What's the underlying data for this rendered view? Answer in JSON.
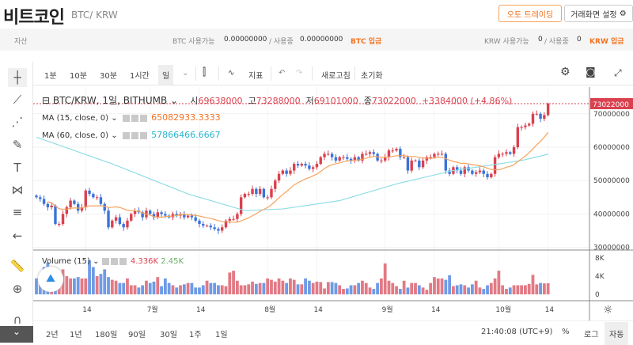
{
  "header": {
    "title": "비트코인",
    "pair": "BTC/ KRW",
    "auto_trading": "오토 트레이딩",
    "screen_settings": "거래화면 설정"
  },
  "assets": {
    "label": "자산",
    "btc_avail_label": "BTC 사용가능",
    "btc_avail": "0.00000000",
    "btc_inuse_label": "/ 사용중",
    "btc_inuse": "0.00000000",
    "btc_deposit": "BTC 입금",
    "krw_avail_label": "KRW 사용가능",
    "krw_avail": "0",
    "krw_inuse_label": "/ 사용중",
    "krw_inuse": "0",
    "krw_deposit": "KRW 입금"
  },
  "toolbar": {
    "intervals": [
      "1분",
      "10분",
      "30분",
      "1시간",
      "일"
    ],
    "indicator": "지표",
    "refresh": "새로고침",
    "reset": "초기화"
  },
  "legend": {
    "symbol": "BTC/KRW, 1일, BITHUMB",
    "open_label": "시",
    "open": "69638000",
    "high_label": "고",
    "high": "73288000",
    "low_label": "저",
    "low": "69101000",
    "close_label": "종",
    "close": "73022000",
    "change": "+3384000 (+4.86%)",
    "ma15_label": "MA (15, close, 0)",
    "ma15": "65082933.3333",
    "ma60_label": "MA (60, close, 0)",
    "ma60": "57866466.6667",
    "volume_label": "Volume (15)",
    "vol1": "4.336K",
    "vol2": "2.45K"
  },
  "bottom": {
    "ranges": [
      "2년",
      "1년",
      "180일",
      "90일",
      "30일",
      "1주",
      "1일"
    ],
    "time": "21:40:08 (UTC+9)",
    "percent": "%",
    "log": "로그",
    "auto": "자동"
  },
  "colors": {
    "up": "#d9414f",
    "down": "#3b73d9",
    "ma15": "#f7a35c",
    "ma60": "#8fdde6",
    "accent": "#f37321"
  },
  "chart_data": {
    "type": "candlestick",
    "unit": "KRW (millions)",
    "last_price_label": "73022000",
    "y_ticks": [
      {
        "v": 70,
        "label": "70000000"
      },
      {
        "v": 60,
        "label": "60000000"
      },
      {
        "v": 50,
        "label": "50000000"
      },
      {
        "v": 40,
        "label": "40000000"
      },
      {
        "v": 30,
        "label": "30000000"
      }
    ],
    "vol_ticks": [
      {
        "v": 8,
        "label": "8K"
      },
      {
        "v": 4,
        "label": "4K"
      },
      {
        "v": 0,
        "label": "0"
      }
    ],
    "x_ticks": [
      {
        "i": 13,
        "label": "14"
      },
      {
        "i": 30,
        "label": "7월"
      },
      {
        "i": 43,
        "label": "14"
      },
      {
        "i": 61,
        "label": "8월"
      },
      {
        "i": 74,
        "label": "14"
      },
      {
        "i": 92,
        "label": "9월"
      },
      {
        "i": 105,
        "label": "14"
      },
      {
        "i": 122,
        "label": "10월"
      },
      {
        "i": 135,
        "label": "14"
      }
    ],
    "closes": [
      45,
      44.5,
      43,
      42,
      42.5,
      37,
      37,
      40,
      42,
      44,
      43,
      41,
      42,
      47,
      46,
      45,
      45,
      43,
      41,
      36,
      38,
      39,
      37,
      36,
      38,
      40,
      41,
      40.5,
      39,
      41,
      40,
      39,
      40.5,
      40,
      39.5,
      39,
      40,
      39.5,
      40,
      39,
      39.5,
      39,
      38,
      37,
      36.5,
      36.5,
      36,
      35.5,
      35,
      36,
      38,
      38.5,
      38.5,
      40,
      45,
      46,
      46,
      47.5,
      46,
      47.5,
      45,
      45,
      47.5,
      50,
      52,
      53,
      52,
      53,
      55,
      54.5,
      55,
      54.5,
      53.5,
      54,
      55,
      57,
      58,
      58,
      57,
      56,
      57,
      57,
      56.5,
      56,
      57,
      56,
      58,
      58,
      58.5,
      58,
      56,
      56,
      57,
      59,
      59,
      59.5,
      57,
      57,
      53,
      56,
      56,
      54,
      56,
      57,
      57,
      58,
      58,
      58,
      53,
      52,
      54,
      53,
      52,
      54,
      53,
      52,
      52.5,
      53,
      52,
      51,
      52,
      57,
      58,
      58,
      58.5,
      58,
      60,
      66,
      66,
      66.5,
      67,
      70,
      70,
      68.5,
      69.6,
      73
    ],
    "volumes": [
      3.5,
      2.5,
      6,
      7,
      4.5,
      3,
      2,
      5.5,
      4,
      3.5,
      3.5,
      3.8,
      3.5,
      3.5,
      7.5,
      6,
      4,
      4.5,
      5.5,
      3.8,
      3.2,
      3,
      2.5,
      2.5,
      3.5,
      2,
      2,
      1.5,
      2,
      3,
      2.5,
      2.8,
      3.8,
      1.8,
      3.5,
      2.5,
      2,
      1.5,
      2,
      2.2,
      2.5,
      2.5,
      1.5,
      1.5,
      2,
      3,
      2.5,
      2.5,
      2,
      2,
      1.8,
      4.8,
      5.2,
      3,
      2,
      2,
      2.2,
      2.8,
      2.3,
      2.5,
      2.5,
      3.5,
      3.2,
      2.8,
      3.5,
      3,
      2.5,
      3.5,
      3.2,
      2.2,
      2.2,
      3.5,
      3,
      2.5,
      2.8,
      2.7,
      1.3,
      2.7,
      2.7,
      2.5,
      2,
      1.2,
      1.3,
      2,
      2,
      2.5,
      3,
      2.5,
      1.5,
      1.2,
      2.5,
      3.5,
      6.8,
      3,
      2.5,
      1.8,
      1.2,
      3,
      1.5,
      2.5,
      2.5,
      2,
      1.5,
      1,
      2.5,
      3.8,
      3.5,
      3.5,
      3.2,
      4.2,
      1.8,
      2,
      2.2,
      2,
      1.5,
      2.2,
      3,
      1.5,
      1.2,
      2,
      2.5,
      3.5,
      5.2,
      2,
      1.2,
      1.5,
      2,
      2,
      2,
      2,
      2.3,
      4.3,
      2.2,
      2.5,
      2.4,
      2.45
    ],
    "ma60_points": [
      [
        0,
        63
      ],
      [
        20,
        55
      ],
      [
        40,
        46
      ],
      [
        55,
        41
      ],
      [
        65,
        41.5
      ],
      [
        80,
        44
      ],
      [
        95,
        49
      ],
      [
        110,
        53
      ],
      [
        122,
        55
      ],
      [
        128,
        56
      ],
      [
        135,
        57.9
      ]
    ]
  }
}
